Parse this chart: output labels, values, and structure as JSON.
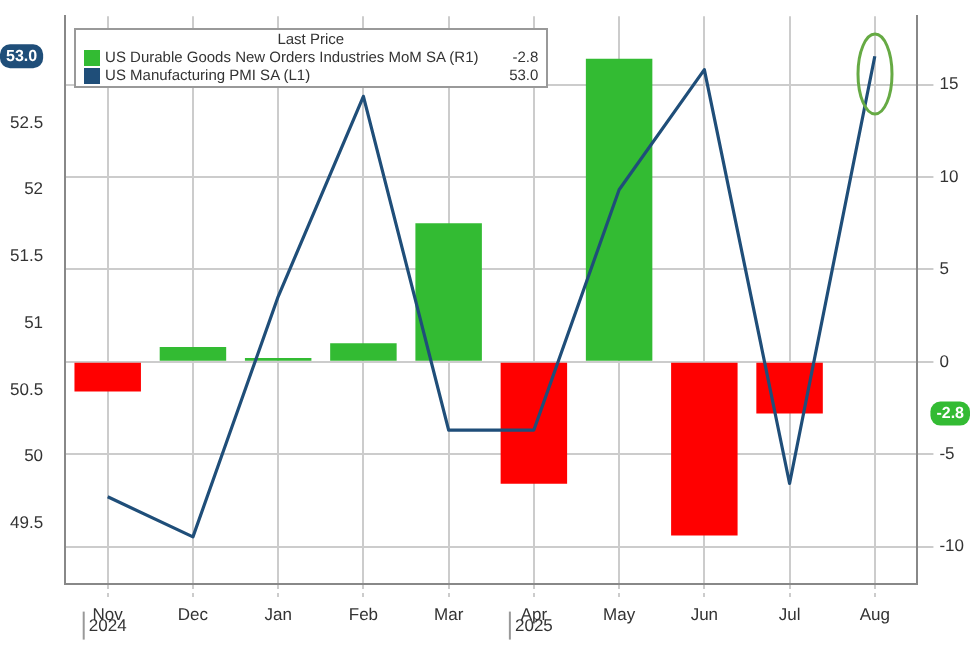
{
  "chart_data": {
    "type": "bar",
    "categories": [
      "Nov",
      "Dec",
      "Jan",
      "Feb",
      "Mar",
      "Apr",
      "May",
      "Jun",
      "Jul",
      "Aug"
    ],
    "series": [
      {
        "name": "US Durable Goods New Orders Industries MoM SA (R1)",
        "axis": "y2",
        "colors": [
          "#ff0000",
          "#33bb33",
          "#33bb33",
          "#33bb33",
          "#33bb33",
          "#ff0000",
          "#33bb33",
          "#ff0000",
          "#ff0000",
          null
        ],
        "color": "#33bb33",
        "values": [
          -1.6,
          0.8,
          0.2,
          1.0,
          7.5,
          -6.6,
          16.4,
          -9.4,
          -2.8,
          null
        ]
      },
      {
        "name": "US Manufacturing PMI SA (L1)",
        "type": "line",
        "axis": "y",
        "color": "#1f4e79",
        "values": [
          49.7,
          49.4,
          51.2,
          52.7,
          50.2,
          50.2,
          52.0,
          52.9,
          49.8,
          53.0
        ]
      }
    ],
    "legend_title": "Last Price",
    "legend": "top left",
    "ylim": [
      49.05,
      53.3
    ],
    "yticks": [
      49.5,
      50.0,
      50.5,
      51.0,
      51.5,
      52.0,
      52.5
    ],
    "y2lim": [
      -12,
      18.7
    ],
    "y2ticks": [
      -10,
      -5,
      0,
      5,
      10,
      15
    ],
    "grid": true,
    "marker": "none",
    "annotations": [
      "2024",
      "2025",
      "-2.8",
      "53.0"
    ]
  }
}
